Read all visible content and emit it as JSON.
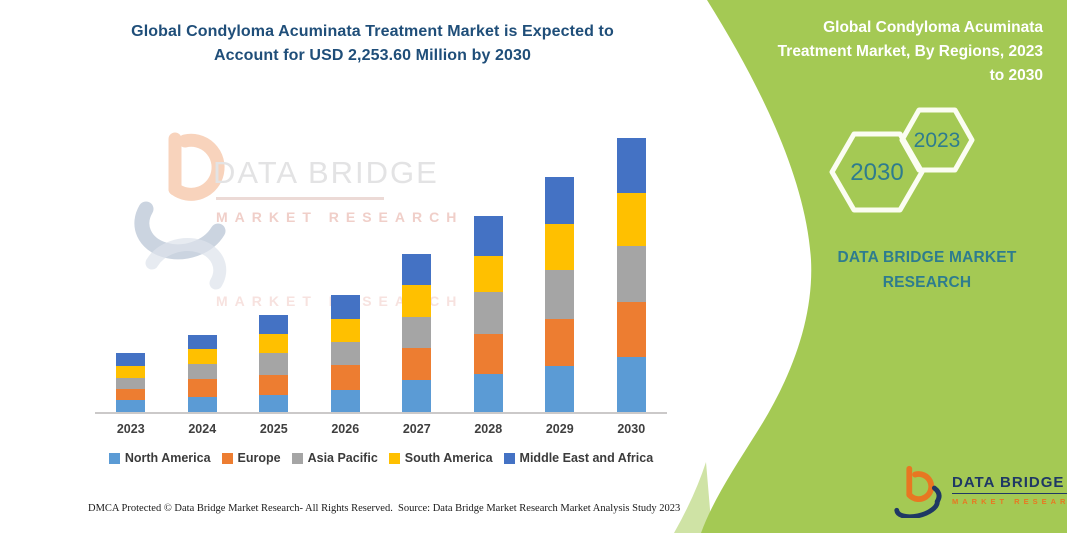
{
  "header": {
    "line1": "Global Condyloma Acuminata Treatment Market is Expected to",
    "line2": "Account for USD 2,253.60 Million by 2030"
  },
  "chart_data": {
    "type": "bar",
    "stacked": true,
    "title": "Global Condyloma Acuminata Treatment Market is Expected to Account for USD 2,253.60 Million by 2030",
    "categories": [
      "2023",
      "2024",
      "2025",
      "2026",
      "2027",
      "2028",
      "2029",
      "2030"
    ],
    "series": [
      {
        "name": "North America",
        "color": "#5B9BD5",
        "values": [
          96,
          126,
          137,
          178,
          260,
          309,
          377,
          451
        ]
      },
      {
        "name": "Europe",
        "color": "#ED7D31",
        "values": [
          96,
          145,
          164,
          205,
          268,
          334,
          389,
          451
        ]
      },
      {
        "name": "Asia Pacific",
        "color": "#A5A5A5",
        "values": [
          90,
          123,
          183,
          191,
          252,
          341,
          398,
          459
        ]
      },
      {
        "name": "South America",
        "color": "#FFC000",
        "values": [
          96,
          123,
          158,
          191,
          268,
          301,
          380,
          443
        ]
      },
      {
        "name": "Middle East and Africa",
        "color": "#4472C4",
        "values": [
          110,
          117,
          156,
          196,
          254,
          328,
          390,
          449
        ]
      }
    ],
    "xlabel": "",
    "ylabel": "",
    "unit": "USD Million",
    "ylim": [
      0,
      2400
    ],
    "gridlines": false,
    "y_axis_labels_shown": false,
    "legend_position": "bottom",
    "totals": {
      "2023": 488,
      "2030": 2253.6
    }
  },
  "watermark": {
    "brand": "DATA BRIDGE",
    "sub": "MARKET RESEARCH"
  },
  "right_panel": {
    "title_line1": "Global Condyloma Acuminata",
    "title_line2": "Treatment Market, By Regions, 2023",
    "title_line3": "to 2030",
    "hex_large": "2030",
    "hex_small": "2023",
    "brand": "DATA BRIDGE MARKET RESEARCH"
  },
  "footer": {
    "left": "DMCA Protected © Data Bridge Market Research-  All Rights Reserved.",
    "right": "Source: Data Bridge Market Research  Market Analysis Study 2023"
  },
  "logo": {
    "name": "DATA BRIDGE",
    "sub": "MARKET RESEARCH"
  },
  "colors": {
    "panel_green": "#A4C954",
    "panel_green_light": "#CFE3A5",
    "teal": "#2E7C8E",
    "title_navy": "#1F4E79",
    "logo_navy": "#1F3864",
    "logo_orange": "#E87722",
    "axis_text": "#3F3F3F",
    "axis_line": "#CBC9C9"
  }
}
